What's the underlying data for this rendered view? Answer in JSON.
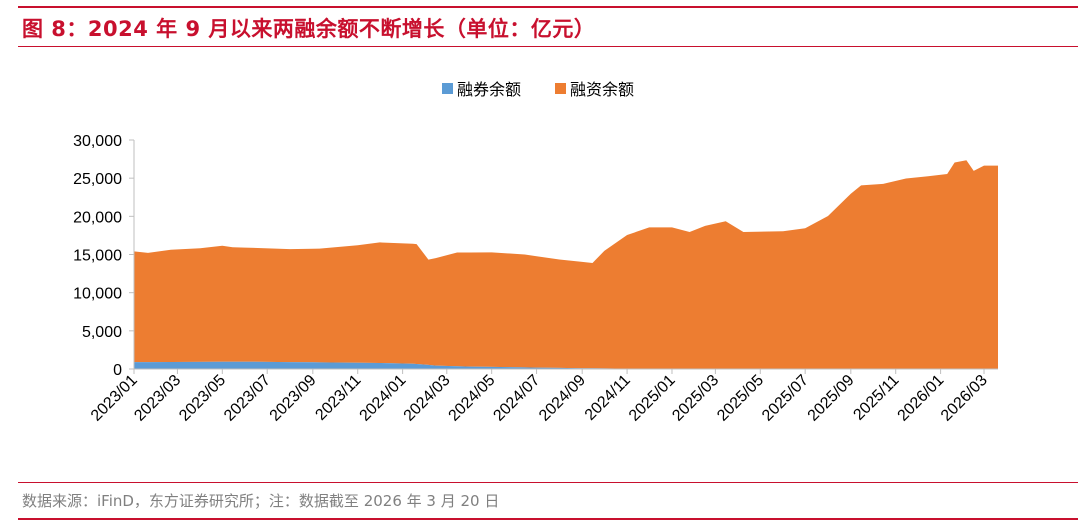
{
  "title": "图 8：2024 年 9 月以来两融余额不断增长（单位：亿元）",
  "source": "数据来源：iFinD，东方证券研究所；注：数据截至 2026 年 3 月 20 日",
  "colors": {
    "accent": "#c8102e",
    "short": "#5b9bd5",
    "margin": "#ed7d31",
    "axis": "#bfbfbf"
  },
  "chart_data": {
    "type": "area",
    "stacked": true,
    "legend_position": "top-center",
    "grid": false,
    "ylim": [
      0,
      30000
    ],
    "yticks": [
      "0",
      "5,000",
      "10,000",
      "15,000",
      "20,000",
      "25,000",
      "30,000"
    ],
    "yticks_values": [
      0,
      5000,
      10000,
      15000,
      20000,
      25000,
      30000
    ],
    "xticks": [
      "2023/01",
      "2023/03",
      "2023/05",
      "2023/07",
      "2023/09",
      "2023/11",
      "2024/01",
      "2024/03",
      "2024/05",
      "2024/07",
      "2024/09",
      "2024/11",
      "2025/01",
      "2025/03",
      "2025/05",
      "2025/07",
      "2025/09",
      "2025/11",
      "2026/01",
      "2026/03"
    ],
    "x_start": "2023-01-01",
    "x_end": "2026-03-20",
    "series": [
      {
        "name": "融券余额",
        "color": "#5b9bd5",
        "points": [
          [
            "2023-01-01",
            900
          ],
          [
            "2023-06-01",
            950
          ],
          [
            "2023-09-01",
            880
          ],
          [
            "2023-12-01",
            780
          ],
          [
            "2024-01-15",
            700
          ],
          [
            "2024-02-15",
            450
          ],
          [
            "2024-04-01",
            320
          ],
          [
            "2024-07-01",
            180
          ],
          [
            "2024-09-01",
            100
          ],
          [
            "2024-11-01",
            50
          ],
          [
            "2026-03-20",
            50
          ]
        ]
      },
      {
        "name": "融资余额",
        "color": "#ed7d31",
        "points": [
          [
            "2023-01-01",
            14500
          ],
          [
            "2023-01-20",
            14300
          ],
          [
            "2023-02-20",
            14700
          ],
          [
            "2023-04-01",
            14900
          ],
          [
            "2023-05-01",
            15200
          ],
          [
            "2023-05-15",
            15000
          ],
          [
            "2023-08-01",
            14800
          ],
          [
            "2023-09-10",
            14900
          ],
          [
            "2023-11-01",
            15400
          ],
          [
            "2023-12-01",
            15800
          ],
          [
            "2024-01-20",
            15700
          ],
          [
            "2024-02-05",
            13800
          ],
          [
            "2024-03-15",
            14900
          ],
          [
            "2024-05-01",
            15000
          ],
          [
            "2024-06-15",
            14800
          ],
          [
            "2024-08-01",
            14200
          ],
          [
            "2024-09-15",
            13800
          ],
          [
            "2024-10-01",
            15400
          ],
          [
            "2024-11-01",
            17500
          ],
          [
            "2024-12-01",
            18500
          ],
          [
            "2025-01-01",
            18500
          ],
          [
            "2025-01-25",
            17900
          ],
          [
            "2025-02-15",
            18700
          ],
          [
            "2025-03-15",
            19300
          ],
          [
            "2025-04-08",
            17900
          ],
          [
            "2025-06-01",
            18000
          ],
          [
            "2025-07-01",
            18400
          ],
          [
            "2025-08-01",
            20000
          ],
          [
            "2025-09-01",
            22900
          ],
          [
            "2025-09-15",
            24000
          ],
          [
            "2025-10-15",
            24200
          ],
          [
            "2025-11-15",
            24900
          ],
          [
            "2025-12-15",
            25200
          ],
          [
            "2026-01-10",
            25500
          ],
          [
            "2026-01-20",
            27000
          ],
          [
            "2026-02-05",
            27300
          ],
          [
            "2026-02-15",
            25900
          ],
          [
            "2026-03-01",
            26600
          ],
          [
            "2026-03-20",
            26600
          ]
        ]
      }
    ]
  }
}
